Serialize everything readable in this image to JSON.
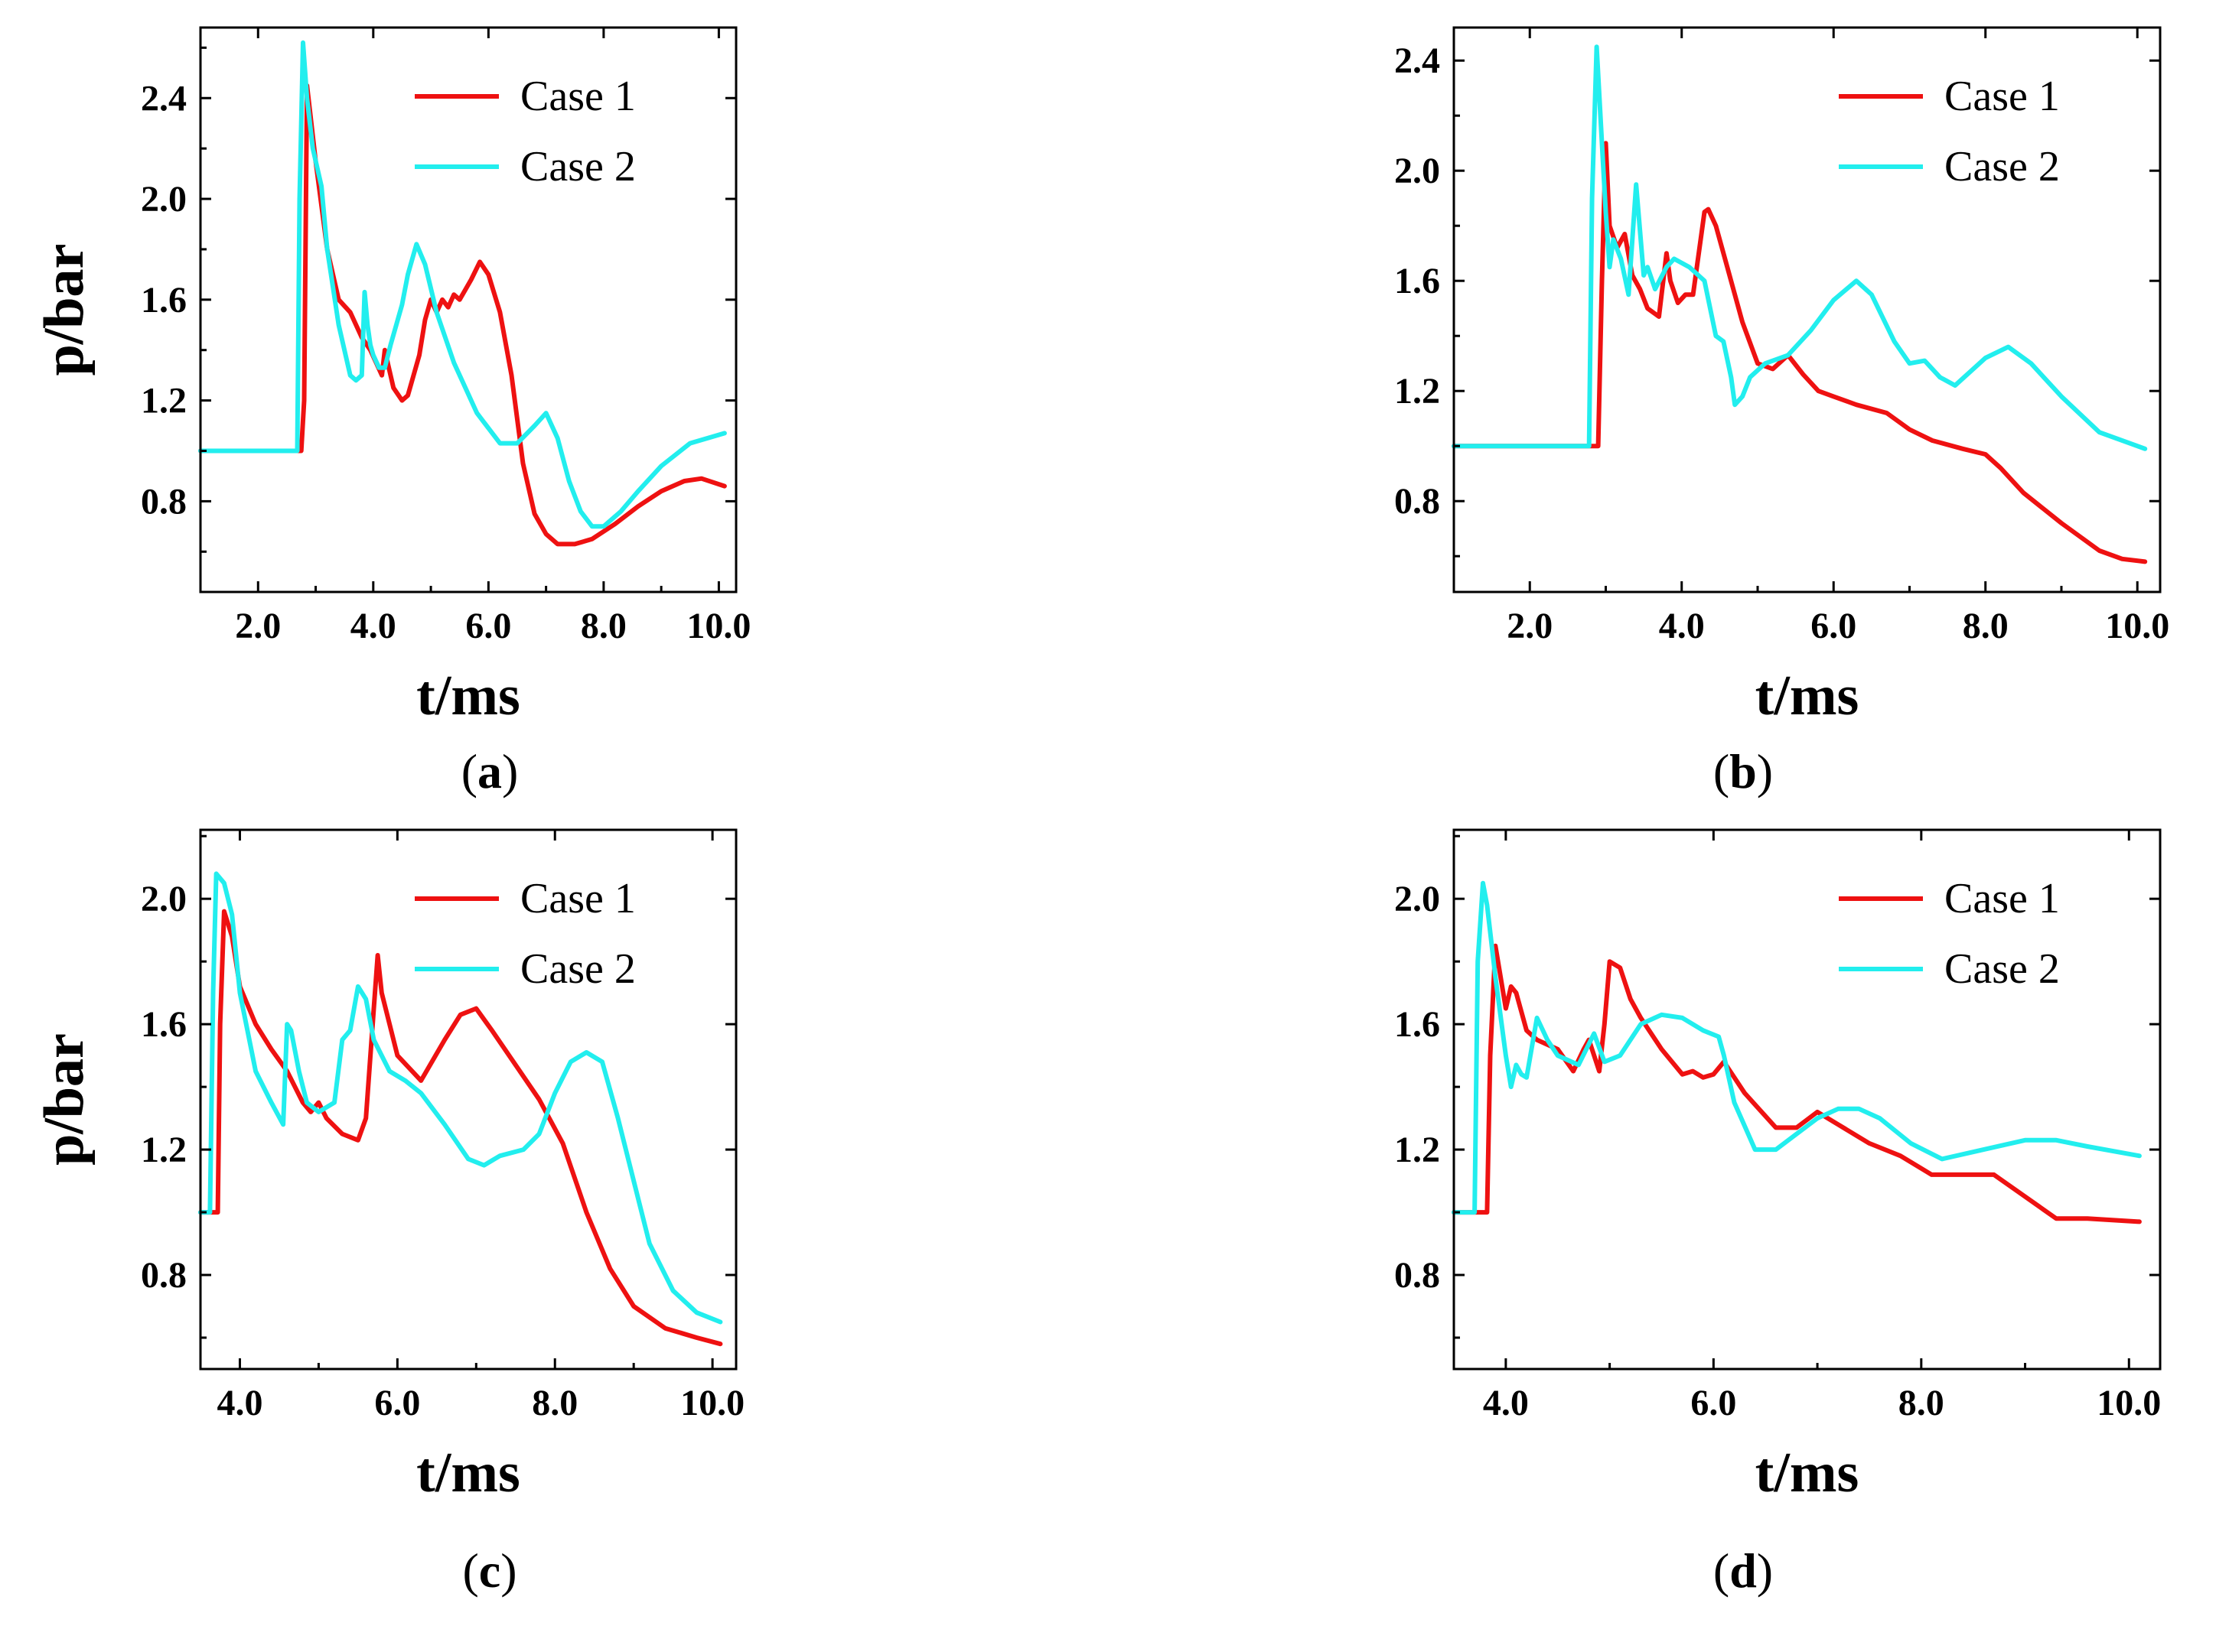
{
  "chart_data": [
    {
      "type": "line",
      "caption_open": "(",
      "caption_letter": "a",
      "caption_close": ")",
      "xlabel": "t/ms",
      "ylabel": "p/bar",
      "xlim": [
        1.0,
        10.3
      ],
      "ylim": [
        0.44,
        2.68
      ],
      "xticks": [
        "2.0",
        "4.0",
        "6.0",
        "8.0",
        "10.0"
      ],
      "xtick_values": [
        2.0,
        4.0,
        6.0,
        8.0,
        10.0
      ],
      "yticks": [
        "0.8",
        "1.2",
        "1.6",
        "2.0",
        "2.4"
      ],
      "ytick_values": [
        0.8,
        1.2,
        1.6,
        2.0,
        2.4
      ],
      "legend": [
        "Case 1",
        "Case 2"
      ],
      "series": [
        {
          "name": "Case 1",
          "color": "#ee1111",
          "x": [
            1.0,
            2.75,
            2.8,
            2.85,
            2.9,
            3.0,
            3.2,
            3.4,
            3.6,
            3.8,
            3.95,
            4.05,
            4.15,
            4.2,
            4.25,
            4.35,
            4.5,
            4.6,
            4.7,
            4.8,
            4.9,
            5.0,
            5.1,
            5.2,
            5.3,
            5.4,
            5.5,
            5.7,
            5.85,
            6.0,
            6.2,
            6.4,
            6.6,
            6.8,
            7.0,
            7.2,
            7.5,
            7.8,
            8.2,
            8.6,
            9.0,
            9.4,
            9.7,
            10.1
          ],
          "y": [
            1.0,
            1.0,
            1.2,
            2.45,
            2.35,
            2.15,
            1.8,
            1.6,
            1.55,
            1.45,
            1.4,
            1.35,
            1.3,
            1.4,
            1.35,
            1.25,
            1.2,
            1.22,
            1.3,
            1.38,
            1.52,
            1.6,
            1.55,
            1.6,
            1.57,
            1.62,
            1.6,
            1.68,
            1.75,
            1.7,
            1.55,
            1.3,
            0.95,
            0.75,
            0.67,
            0.63,
            0.63,
            0.65,
            0.71,
            0.78,
            0.84,
            0.88,
            0.89,
            0.86
          ]
        },
        {
          "name": "Case 2",
          "color": "#22eeee",
          "x": [
            1.0,
            2.68,
            2.72,
            2.78,
            2.85,
            2.95,
            3.1,
            3.2,
            3.4,
            3.6,
            3.7,
            3.8,
            3.85,
            3.9,
            3.95,
            4.0,
            4.1,
            4.2,
            4.3,
            4.4,
            4.5,
            4.6,
            4.75,
            4.9,
            5.1,
            5.4,
            5.8,
            6.2,
            6.5,
            6.8,
            7.0,
            7.2,
            7.4,
            7.6,
            7.8,
            8.0,
            8.3,
            8.6,
            9.0,
            9.5,
            10.1
          ],
          "y": [
            1.0,
            1.0,
            2.0,
            2.62,
            2.4,
            2.2,
            2.05,
            1.8,
            1.5,
            1.3,
            1.28,
            1.3,
            1.63,
            1.5,
            1.42,
            1.38,
            1.33,
            1.33,
            1.42,
            1.5,
            1.58,
            1.7,
            1.82,
            1.74,
            1.55,
            1.35,
            1.15,
            1.03,
            1.03,
            1.1,
            1.15,
            1.05,
            0.88,
            0.76,
            0.7,
            0.7,
            0.76,
            0.84,
            0.94,
            1.03,
            1.07
          ]
        }
      ]
    },
    {
      "type": "line",
      "caption_open": "(",
      "caption_letter": "b",
      "caption_close": ")",
      "xlabel": "t/ms",
      "ylabel": "p/bar",
      "xlim": [
        1.0,
        10.3
      ],
      "ylim": [
        0.47,
        2.52
      ],
      "xticks": [
        "2.0",
        "4.0",
        "6.0",
        "8.0",
        "10.0"
      ],
      "xtick_values": [
        2.0,
        4.0,
        6.0,
        8.0,
        10.0
      ],
      "yticks": [
        "0.8",
        "1.2",
        "1.6",
        "2.0",
        "2.4"
      ],
      "ytick_values": [
        0.8,
        1.2,
        1.6,
        2.0,
        2.4
      ],
      "legend": [
        "Case 1",
        "Case 2"
      ],
      "series": [
        {
          "name": "Case 1",
          "color": "#ee1111",
          "x": [
            1.0,
            2.9,
            2.95,
            3.0,
            3.05,
            3.15,
            3.25,
            3.35,
            3.45,
            3.55,
            3.7,
            3.8,
            3.85,
            3.95,
            4.05,
            4.15,
            4.3,
            4.35,
            4.45,
            4.6,
            4.8,
            5.0,
            5.2,
            5.4,
            5.6,
            5.8,
            6.0,
            6.3,
            6.7,
            7.0,
            7.3,
            7.7,
            8.0,
            8.2,
            8.5,
            9.0,
            9.5,
            9.8,
            10.1
          ],
          "y": [
            1.0,
            1.0,
            1.6,
            2.1,
            1.8,
            1.72,
            1.77,
            1.62,
            1.57,
            1.5,
            1.47,
            1.7,
            1.6,
            1.52,
            1.55,
            1.55,
            1.85,
            1.86,
            1.8,
            1.65,
            1.45,
            1.3,
            1.28,
            1.33,
            1.26,
            1.2,
            1.18,
            1.15,
            1.12,
            1.06,
            1.02,
            0.99,
            0.97,
            0.92,
            0.83,
            0.72,
            0.62,
            0.59,
            0.58
          ]
        },
        {
          "name": "Case 2",
          "color": "#22eeee",
          "x": [
            1.0,
            2.78,
            2.82,
            2.88,
            2.95,
            3.0,
            3.05,
            3.1,
            3.2,
            3.3,
            3.4,
            3.5,
            3.55,
            3.65,
            3.8,
            3.9,
            4.1,
            4.3,
            4.45,
            4.55,
            4.65,
            4.7,
            4.8,
            4.9,
            5.1,
            5.4,
            5.7,
            6.0,
            6.3,
            6.5,
            6.8,
            7.0,
            7.2,
            7.4,
            7.6,
            8.0,
            8.3,
            8.6,
            9.0,
            9.5,
            10.1
          ],
          "y": [
            1.0,
            1.0,
            1.9,
            2.45,
            2.1,
            1.85,
            1.65,
            1.75,
            1.68,
            1.55,
            1.95,
            1.62,
            1.65,
            1.57,
            1.65,
            1.68,
            1.65,
            1.6,
            1.4,
            1.38,
            1.25,
            1.15,
            1.18,
            1.25,
            1.3,
            1.33,
            1.42,
            1.53,
            1.6,
            1.55,
            1.38,
            1.3,
            1.31,
            1.25,
            1.22,
            1.32,
            1.36,
            1.3,
            1.18,
            1.05,
            0.99
          ]
        }
      ]
    },
    {
      "type": "line",
      "caption_open": "(",
      "caption_letter": "c",
      "caption_close": ")",
      "xlabel": "t/ms",
      "ylabel": "p/bar",
      "xlim": [
        3.5,
        10.3
      ],
      "ylim": [
        0.5,
        2.22
      ],
      "xticks": [
        "4.0",
        "6.0",
        "8.0",
        "10.0"
      ],
      "xtick_values": [
        4.0,
        6.0,
        8.0,
        10.0
      ],
      "yticks": [
        "0.8",
        "1.2",
        "1.6",
        "2.0"
      ],
      "ytick_values": [
        0.8,
        1.2,
        1.6,
        2.0
      ],
      "legend": [
        "Case 1",
        "Case 2"
      ],
      "series": [
        {
          "name": "Case 1",
          "color": "#ee1111",
          "x": [
            3.5,
            3.72,
            3.75,
            3.8,
            3.9,
            4.0,
            4.2,
            4.4,
            4.6,
            4.8,
            4.9,
            5.0,
            5.1,
            5.3,
            5.5,
            5.6,
            5.7,
            5.75,
            5.8,
            6.0,
            6.3,
            6.6,
            6.8,
            7.0,
            7.2,
            7.5,
            7.8,
            8.1,
            8.4,
            8.7,
            9.0,
            9.4,
            9.8,
            10.1
          ],
          "y": [
            1.0,
            1.0,
            1.6,
            1.96,
            1.88,
            1.72,
            1.6,
            1.52,
            1.45,
            1.35,
            1.32,
            1.35,
            1.3,
            1.25,
            1.23,
            1.3,
            1.65,
            1.82,
            1.7,
            1.5,
            1.42,
            1.55,
            1.63,
            1.65,
            1.58,
            1.47,
            1.36,
            1.22,
            1.0,
            0.82,
            0.7,
            0.63,
            0.6,
            0.58
          ]
        },
        {
          "name": "Case 2",
          "color": "#22eeee",
          "x": [
            3.5,
            3.62,
            3.66,
            3.7,
            3.8,
            3.9,
            4.0,
            4.2,
            4.4,
            4.55,
            4.6,
            4.65,
            4.75,
            4.85,
            5.0,
            5.2,
            5.3,
            5.4,
            5.5,
            5.6,
            5.7,
            5.9,
            6.1,
            6.3,
            6.6,
            6.9,
            7.1,
            7.3,
            7.6,
            7.8,
            8.0,
            8.2,
            8.4,
            8.6,
            8.8,
            9.0,
            9.2,
            9.5,
            9.8,
            10.1
          ],
          "y": [
            1.0,
            1.0,
            1.7,
            2.08,
            2.05,
            1.95,
            1.7,
            1.45,
            1.35,
            1.28,
            1.6,
            1.58,
            1.45,
            1.35,
            1.32,
            1.35,
            1.55,
            1.58,
            1.72,
            1.68,
            1.55,
            1.45,
            1.42,
            1.38,
            1.28,
            1.17,
            1.15,
            1.18,
            1.2,
            1.25,
            1.38,
            1.48,
            1.51,
            1.48,
            1.3,
            1.1,
            0.9,
            0.75,
            0.68,
            0.65
          ]
        }
      ]
    },
    {
      "type": "line",
      "caption_open": "(",
      "caption_letter": "d",
      "caption_close": ")",
      "xlabel": "t/ms",
      "ylabel": "p/bar",
      "xlim": [
        3.5,
        10.3
      ],
      "ylim": [
        0.5,
        2.22
      ],
      "xticks": [
        "4.0",
        "6.0",
        "8.0",
        "10.0"
      ],
      "xtick_values": [
        4.0,
        6.0,
        8.0,
        10.0
      ],
      "yticks": [
        "0.8",
        "1.2",
        "1.6",
        "2.0"
      ],
      "ytick_values": [
        0.8,
        1.2,
        1.6,
        2.0
      ],
      "legend": [
        "Case 1",
        "Case 2"
      ],
      "series": [
        {
          "name": "Case 1",
          "color": "#ee1111",
          "x": [
            3.5,
            3.82,
            3.85,
            3.9,
            4.0,
            4.05,
            4.1,
            4.2,
            4.3,
            4.5,
            4.65,
            4.75,
            4.8,
            4.9,
            4.95,
            5.0,
            5.1,
            5.2,
            5.3,
            5.5,
            5.7,
            5.8,
            5.9,
            6.0,
            6.1,
            6.3,
            6.6,
            6.8,
            7.0,
            7.2,
            7.5,
            7.8,
            8.1,
            8.4,
            8.7,
            9.0,
            9.3,
            9.6,
            10.1
          ],
          "y": [
            1.0,
            1.0,
            1.5,
            1.85,
            1.65,
            1.72,
            1.7,
            1.58,
            1.55,
            1.52,
            1.45,
            1.52,
            1.55,
            1.45,
            1.6,
            1.8,
            1.78,
            1.68,
            1.62,
            1.52,
            1.44,
            1.45,
            1.43,
            1.44,
            1.48,
            1.38,
            1.27,
            1.27,
            1.32,
            1.28,
            1.22,
            1.18,
            1.12,
            1.12,
            1.12,
            1.05,
            0.98,
            0.98,
            0.97
          ]
        },
        {
          "name": "Case 2",
          "color": "#22eeee",
          "x": [
            3.5,
            3.7,
            3.73,
            3.78,
            3.82,
            3.9,
            4.0,
            4.05,
            4.1,
            4.15,
            4.2,
            4.3,
            4.4,
            4.5,
            4.7,
            4.85,
            4.95,
            5.1,
            5.3,
            5.5,
            5.7,
            5.9,
            6.05,
            6.1,
            6.2,
            6.4,
            6.6,
            6.8,
            7.0,
            7.2,
            7.4,
            7.6,
            7.9,
            8.2,
            8.6,
            9.0,
            9.3,
            9.6,
            10.1
          ],
          "y": [
            1.0,
            1.0,
            1.8,
            2.05,
            1.98,
            1.75,
            1.5,
            1.4,
            1.47,
            1.44,
            1.43,
            1.62,
            1.55,
            1.5,
            1.47,
            1.57,
            1.48,
            1.5,
            1.6,
            1.63,
            1.62,
            1.58,
            1.56,
            1.5,
            1.35,
            1.2,
            1.2,
            1.25,
            1.3,
            1.33,
            1.33,
            1.3,
            1.22,
            1.17,
            1.2,
            1.23,
            1.23,
            1.21,
            1.18
          ]
        }
      ]
    }
  ]
}
